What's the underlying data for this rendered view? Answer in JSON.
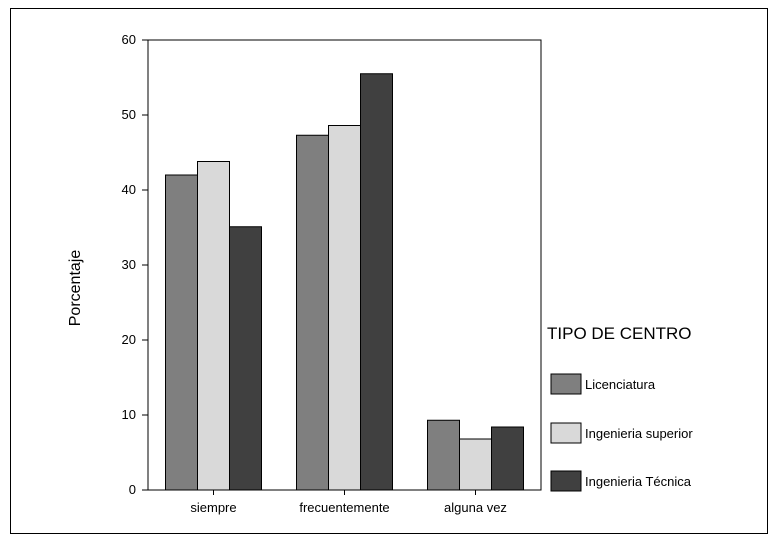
{
  "chart_data": {
    "type": "bar",
    "title": "",
    "xlabel": "",
    "ylabel": "Porcentaje",
    "ylim": [
      0,
      60
    ],
    "yticks": [
      0,
      10,
      20,
      30,
      40,
      50,
      60
    ],
    "categories": [
      "siempre",
      "frecuentemente",
      "alguna vez"
    ],
    "legend_title": "TIPO DE CENTRO",
    "legend_position": "right",
    "grid": false,
    "series": [
      {
        "name": "Licenciatura",
        "color": "#7f7f7f",
        "values": [
          42.0,
          47.3,
          9.3
        ]
      },
      {
        "name": "Ingenieria superior",
        "color": "#d9d9d9",
        "values": [
          43.8,
          48.6,
          6.8
        ]
      },
      {
        "name": "Ingenieria Técnica",
        "color": "#404040",
        "values": [
          35.1,
          55.5,
          8.4
        ]
      }
    ]
  }
}
